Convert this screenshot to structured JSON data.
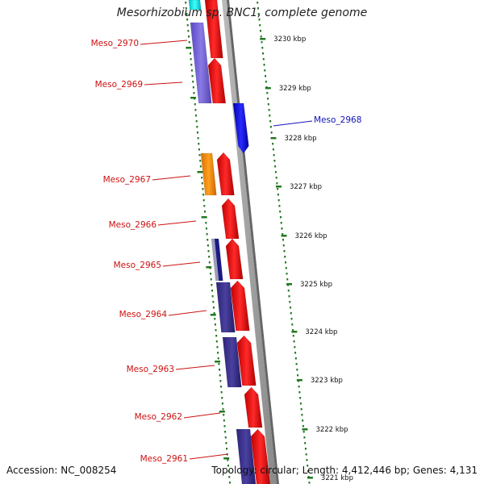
{
  "title": "Mesorhizobium sp. BNC1, complete genome",
  "footer": {
    "accession": "Accession: NC_008254",
    "topology": "Topology: circular; Length: 4,412,446 bp; Genes: 4,131"
  },
  "colors": {
    "backbone": "#888888",
    "forward_strand": "#ff1111",
    "tick": "#227722",
    "label_red": "#cc1111",
    "label_blue": "#1111bb"
  },
  "scale_labels": [
    "3230 kbp",
    "3229 kbp",
    "3228 kbp",
    "3227 kbp",
    "3226 kbp",
    "3225 kbp",
    "3224 kbp",
    "3223 kbp",
    "3222 kbp",
    "3221 kbp"
  ],
  "gene_labels": [
    {
      "text": "Meso_2970",
      "color": "#cc1111"
    },
    {
      "text": "Meso_2969",
      "color": "#cc1111"
    },
    {
      "text": "Meso_2968",
      "color": "#1111bb"
    },
    {
      "text": "Meso_2967",
      "color": "#cc1111"
    },
    {
      "text": "Meso_2966",
      "color": "#cc1111"
    },
    {
      "text": "Meso_2965",
      "color": "#cc1111"
    },
    {
      "text": "Meso_2964",
      "color": "#cc1111"
    },
    {
      "text": "Meso_2963",
      "color": "#cc1111"
    },
    {
      "text": "Meso_2962",
      "color": "#cc1111"
    },
    {
      "text": "Meso_2961",
      "color": "#cc1111"
    }
  ]
}
